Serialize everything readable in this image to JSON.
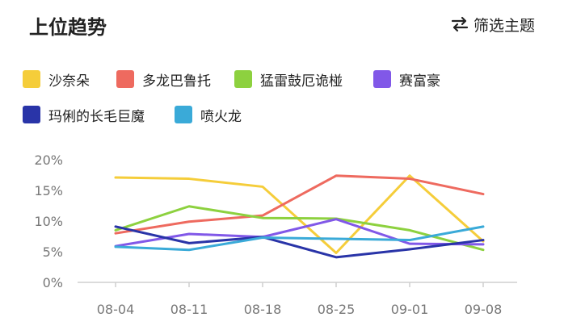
{
  "header": {
    "title": "上位趋势",
    "filter_label": "筛选主题"
  },
  "icons": {
    "filter": "swap-arrows-icon"
  },
  "chart_data": {
    "type": "line",
    "x": [
      "08-04",
      "08-11",
      "08-18",
      "08-25",
      "09-01",
      "09-08"
    ],
    "yticks": [
      "0%",
      "5%",
      "10%",
      "15%",
      "20%"
    ],
    "ylim": [
      0,
      20
    ],
    "grid": false,
    "legend_placement": "top",
    "series": [
      {
        "name": "沙奈朵",
        "color": "#f5cd3a",
        "values": [
          17.1,
          16.9,
          15.6,
          4.8,
          17.4,
          6.7
        ]
      },
      {
        "name": "多龙巴鲁托",
        "color": "#ee6a5f",
        "values": [
          8.0,
          9.9,
          10.9,
          17.4,
          16.9,
          14.4
        ]
      },
      {
        "name": "猛雷鼓厄诡椪",
        "color": "#8dd13f",
        "values": [
          8.5,
          12.4,
          10.5,
          10.4,
          8.5,
          5.3
        ]
      },
      {
        "name": "赛富豪",
        "color": "#8158e8",
        "values": [
          5.9,
          7.9,
          7.4,
          10.3,
          6.3,
          6.2
        ]
      },
      {
        "name": "玛俐的长毛巨魔",
        "color": "#2934a8",
        "values": [
          9.1,
          6.4,
          7.4,
          4.1,
          5.4,
          6.9
        ]
      },
      {
        "name": "喷火龙",
        "color": "#3aaad8",
        "values": [
          5.8,
          5.3,
          7.3,
          7.1,
          6.9,
          9.1
        ]
      }
    ]
  }
}
